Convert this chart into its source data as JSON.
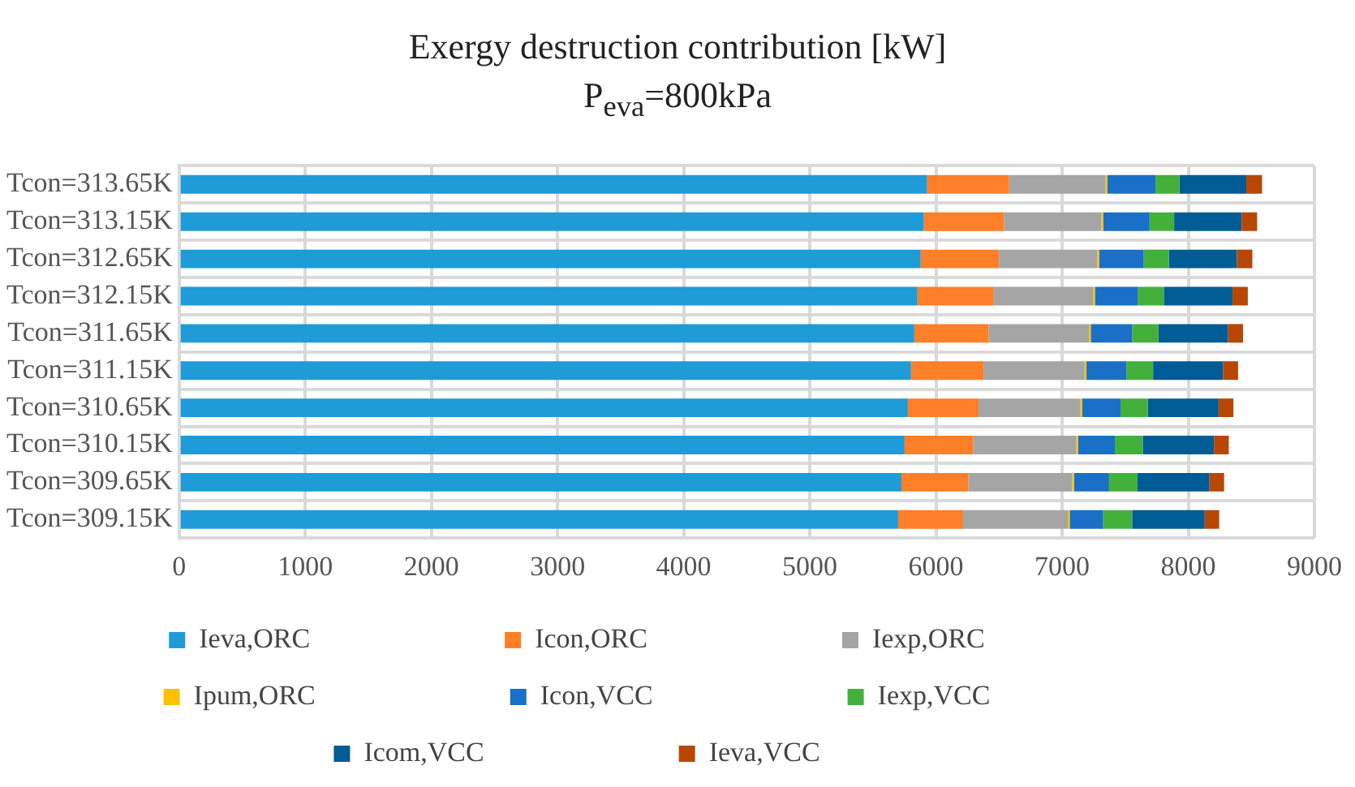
{
  "chart_data": {
    "type": "bar",
    "orientation": "horizontal",
    "stacked": true,
    "title": "Exergy destruction contribution [kW]",
    "subtitle": "P$_{eva}$=800kPa",
    "categories": [
      "Tcon=313.65K",
      "Tcon=313.15K",
      "Tcon=312.65K",
      "Tcon=312.15K",
      "Tcon=311.65K",
      "Tcon=311.15K",
      "Tcon=310.65K",
      "Tcon=310.15K",
      "Tcon=309.65K",
      "Tcon=309.15K"
    ],
    "series": [
      {
        "name": "Ieva,ORC",
        "color": "#1f9bd7",
        "values": [
          5930,
          5904,
          5879,
          5853,
          5828,
          5802,
          5777,
          5751,
          5726,
          5700
        ]
      },
      {
        "name": "Icon,ORC",
        "color": "#fd7f27",
        "values": [
          650,
          635,
          620,
          605,
          590,
          575,
          560,
          545,
          530,
          515
        ]
      },
      {
        "name": "Iexp,ORC",
        "color": "#a5a5a5",
        "values": [
          765,
          772,
          779,
          787,
          794,
          801,
          808,
          816,
          823,
          830
        ]
      },
      {
        "name": "Ipum,ORC",
        "color": "#ffc000",
        "values": [
          15,
          15,
          15,
          15,
          15,
          15,
          15,
          15,
          15,
          15
        ]
      },
      {
        "name": "Icon,VCC",
        "color": "#1a70c6",
        "values": [
          380,
          367,
          354,
          342,
          329,
          316,
          303,
          291,
          278,
          265
        ]
      },
      {
        "name": "Iexp,VCC",
        "color": "#44b03c",
        "values": [
          190,
          195,
          199,
          204,
          208,
          212,
          217,
          221,
          226,
          230
        ]
      },
      {
        "name": "Icom,VCC",
        "color": "#005c94",
        "values": [
          530,
          535,
          540,
          545,
          550,
          555,
          560,
          565,
          570,
          575
        ]
      },
      {
        "name": "Ieva,VCC",
        "color": "#b84704",
        "values": [
          125,
          123,
          122,
          121,
          120,
          119,
          118,
          117,
          116,
          115
        ]
      }
    ],
    "xlim": [
      0,
      9000
    ],
    "xticks": [
      0,
      1000,
      2000,
      3000,
      4000,
      5000,
      6000,
      7000,
      8000,
      9000
    ],
    "grid": true,
    "legend": "bottom"
  }
}
